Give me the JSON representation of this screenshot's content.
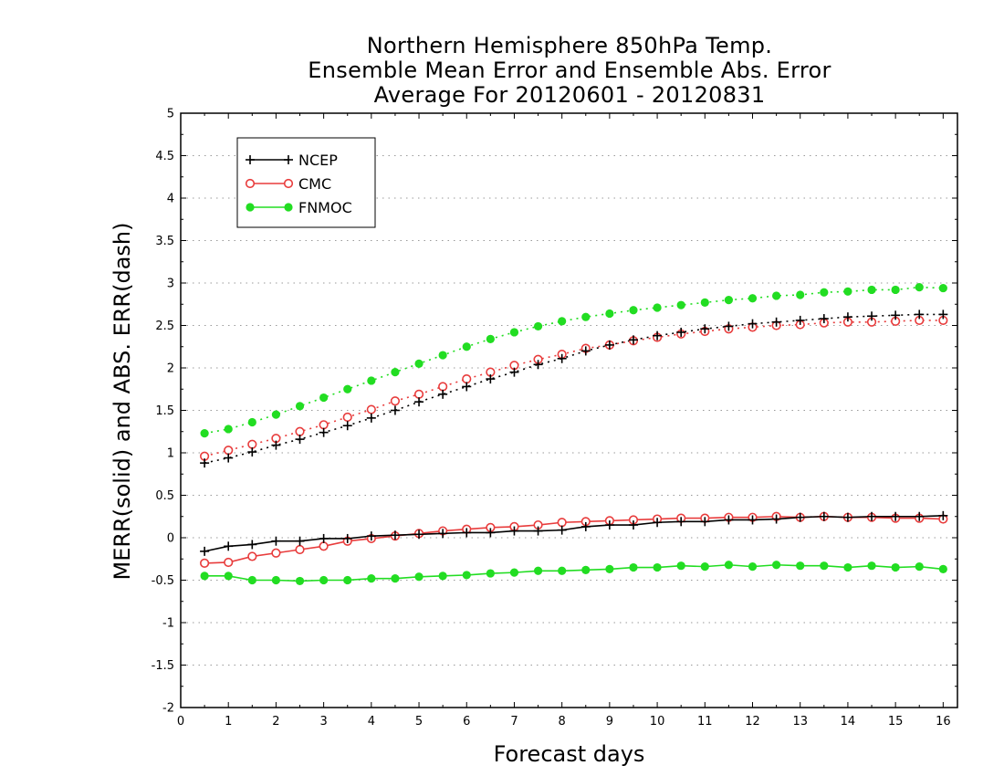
{
  "chart_data": {
    "type": "line",
    "title_lines": [
      "Northern Hemisphere 850hPa Temp.",
      "Ensemble Mean Error and Ensemble Abs. Error",
      "Average For 20120601 - 20120831"
    ],
    "xlabel": "Forecast days",
    "ylabel": "MERR(solid) and ABS. ERR(dash)",
    "xlim": [
      0,
      16.3
    ],
    "ylim": [
      -2,
      5
    ],
    "xticks": [
      0,
      1,
      2,
      3,
      4,
      5,
      6,
      7,
      8,
      9,
      10,
      11,
      12,
      13,
      14,
      15,
      16
    ],
    "yticks": [
      -2,
      -1.5,
      -1,
      -0.5,
      0,
      0.5,
      1,
      1.5,
      2,
      2.5,
      3,
      3.5,
      4,
      4.5,
      5
    ],
    "ytick_labels": [
      "-2",
      "-1.5",
      "-1",
      "-0.5",
      "0",
      "0.5",
      "1",
      "1.5",
      "2",
      "2.5",
      "3",
      "3.5",
      "4",
      "4.5",
      "5"
    ],
    "grid": "horizontal dotted",
    "legend_position": "top-left",
    "x": [
      0.5,
      1,
      1.5,
      2,
      2.5,
      3,
      3.5,
      4,
      4.5,
      5,
      5.5,
      6,
      6.5,
      7,
      7.5,
      8,
      8.5,
      9,
      9.5,
      10,
      10.5,
      11,
      11.5,
      12,
      12.5,
      13,
      13.5,
      14,
      14.5,
      15,
      15.5,
      16
    ],
    "series": [
      {
        "name": "NCEP",
        "color": "#000000",
        "marker": "plus",
        "merr": [
          -0.16,
          -0.1,
          -0.08,
          -0.04,
          -0.04,
          -0.01,
          -0.01,
          0.02,
          0.03,
          0.04,
          0.05,
          0.06,
          0.06,
          0.08,
          0.08,
          0.09,
          0.13,
          0.15,
          0.15,
          0.18,
          0.19,
          0.19,
          0.21,
          0.21,
          0.22,
          0.24,
          0.25,
          0.24,
          0.25,
          0.25,
          0.25,
          0.26
        ],
        "abs_err": [
          0.88,
          0.94,
          1.01,
          1.09,
          1.16,
          1.24,
          1.32,
          1.41,
          1.5,
          1.6,
          1.69,
          1.78,
          1.87,
          1.95,
          2.04,
          2.11,
          2.2,
          2.27,
          2.33,
          2.38,
          2.42,
          2.46,
          2.49,
          2.52,
          2.54,
          2.56,
          2.58,
          2.6,
          2.61,
          2.62,
          2.63,
          2.63
        ]
      },
      {
        "name": "CMC",
        "color": "#e83c3c",
        "marker": "open-circle",
        "merr": [
          -0.3,
          -0.29,
          -0.22,
          -0.18,
          -0.14,
          -0.1,
          -0.04,
          -0.01,
          0.02,
          0.05,
          0.08,
          0.1,
          0.12,
          0.13,
          0.15,
          0.18,
          0.19,
          0.2,
          0.21,
          0.22,
          0.23,
          0.23,
          0.24,
          0.24,
          0.25,
          0.24,
          0.25,
          0.24,
          0.24,
          0.23,
          0.23,
          0.22
        ],
        "abs_err": [
          0.96,
          1.03,
          1.1,
          1.17,
          1.25,
          1.33,
          1.42,
          1.51,
          1.61,
          1.69,
          1.78,
          1.87,
          1.95,
          2.03,
          2.1,
          2.16,
          2.23,
          2.27,
          2.32,
          2.36,
          2.4,
          2.43,
          2.46,
          2.48,
          2.5,
          2.51,
          2.53,
          2.54,
          2.54,
          2.55,
          2.56,
          2.56
        ]
      },
      {
        "name": "FNMOC",
        "color": "#22dd22",
        "marker": "filled-circle",
        "merr": [
          -0.45,
          -0.45,
          -0.5,
          -0.5,
          -0.51,
          -0.5,
          -0.5,
          -0.48,
          -0.48,
          -0.46,
          -0.45,
          -0.44,
          -0.42,
          -0.41,
          -0.39,
          -0.39,
          -0.38,
          -0.37,
          -0.35,
          -0.35,
          -0.33,
          -0.34,
          -0.32,
          -0.34,
          -0.32,
          -0.33,
          -0.33,
          -0.35,
          -0.33,
          -0.35,
          -0.34,
          -0.37
        ],
        "abs_err": [
          1.23,
          1.28,
          1.36,
          1.45,
          1.55,
          1.65,
          1.75,
          1.85,
          1.95,
          2.05,
          2.15,
          2.25,
          2.34,
          2.42,
          2.49,
          2.55,
          2.6,
          2.64,
          2.68,
          2.71,
          2.74,
          2.77,
          2.8,
          2.82,
          2.85,
          2.86,
          2.89,
          2.9,
          2.92,
          2.92,
          2.95,
          2.94
        ]
      }
    ]
  }
}
